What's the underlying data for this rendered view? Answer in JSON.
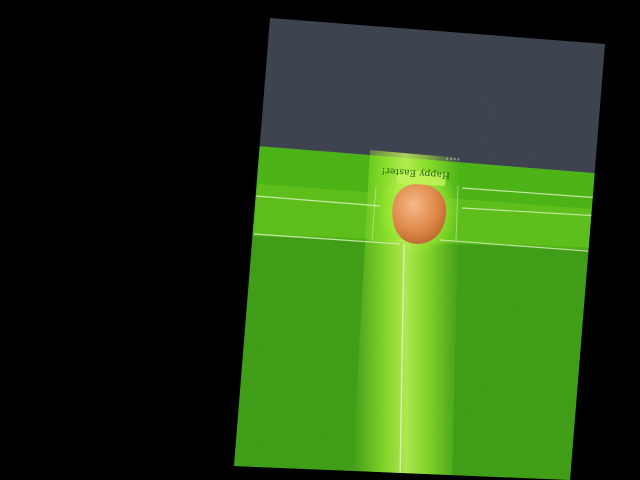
{
  "scene": {
    "greeting_text": "Happy Easter!",
    "tiny_caption": "a a a a",
    "colors": {
      "background": "#000000",
      "sky": "#3e4350",
      "grass_dark": "#3f9d12",
      "grass_light": "#6ccc1c",
      "path_glow": "#b8ff3a",
      "egg": "#e08a4a",
      "line": "#e6f2c8"
    },
    "icons": {
      "egg": "easter-egg-icon"
    }
  }
}
